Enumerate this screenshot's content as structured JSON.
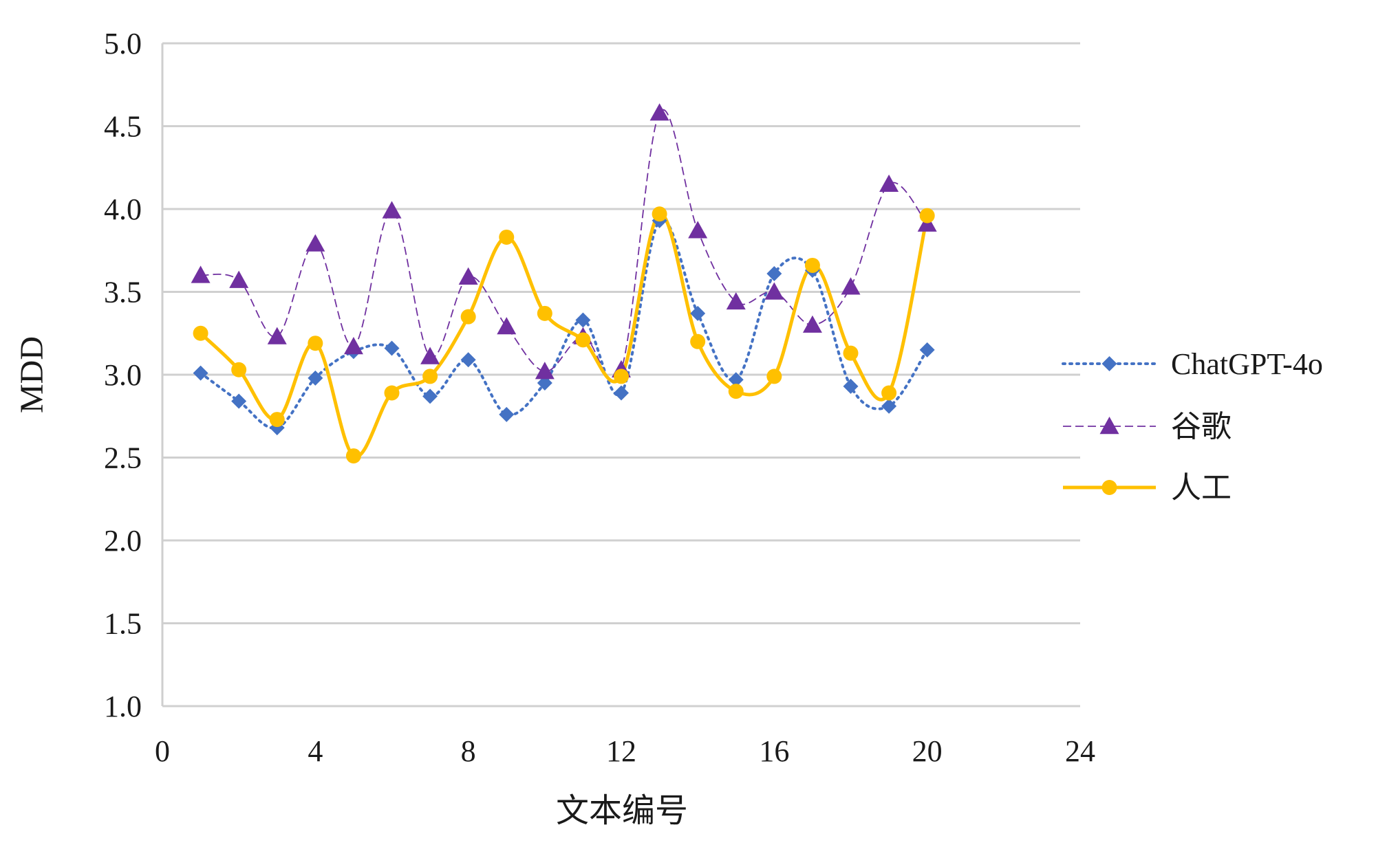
{
  "chart_data": {
    "type": "line",
    "title": "",
    "xlabel": "文本编号",
    "ylabel": "MDD",
    "xlim": [
      0,
      24
    ],
    "ylim": [
      1.0,
      5.0
    ],
    "x_ticks": [
      "0",
      "4",
      "8",
      "12",
      "16",
      "20",
      "24"
    ],
    "y_ticks": [
      "1.0",
      "1.5",
      "2.0",
      "2.5",
      "3.0",
      "3.5",
      "4.0",
      "4.5",
      "5.0"
    ],
    "grid": true,
    "legend_position": "right",
    "x": [
      1,
      2,
      3,
      4,
      5,
      6,
      7,
      8,
      9,
      10,
      11,
      12,
      13,
      14,
      15,
      16,
      17,
      18,
      19,
      20
    ],
    "series": [
      {
        "name": "ChatGPT-4o",
        "color": "#4472C4",
        "marker": "diamond",
        "line_style": "dotted",
        "values": [
          3.01,
          2.84,
          2.68,
          2.98,
          3.14,
          3.16,
          2.87,
          3.09,
          2.76,
          2.95,
          3.33,
          2.89,
          3.93,
          3.37,
          2.97,
          3.61,
          3.63,
          2.93,
          2.81,
          3.15
        ]
      },
      {
        "name": "谷歌",
        "color": "#7030A0",
        "marker": "triangle",
        "line_style": "dashed",
        "values": [
          3.6,
          3.57,
          3.23,
          3.79,
          3.17,
          3.99,
          3.11,
          3.59,
          3.29,
          3.02,
          3.23,
          3.03,
          4.58,
          3.87,
          3.44,
          3.5,
          3.3,
          3.53,
          4.15,
          3.91
        ]
      },
      {
        "name": "人工",
        "color": "#FFC000",
        "marker": "circle",
        "line_style": "solid",
        "values": [
          3.25,
          3.03,
          2.73,
          3.19,
          2.51,
          2.89,
          2.99,
          3.35,
          3.83,
          3.37,
          3.21,
          2.99,
          3.97,
          3.2,
          2.9,
          2.99,
          3.66,
          3.13,
          2.89,
          3.96
        ]
      }
    ]
  }
}
